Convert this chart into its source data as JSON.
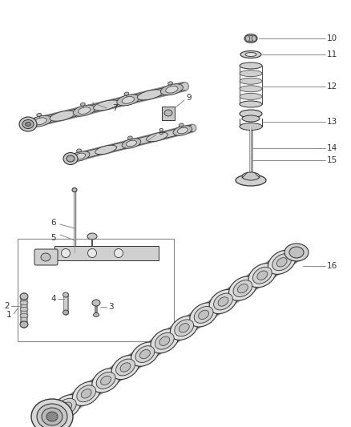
{
  "background_color": "#ffffff",
  "fig_width": 4.38,
  "fig_height": 5.33,
  "dpi": 100,
  "label_fontsize": 7.5,
  "label_color": "#333333",
  "line_color": "#555555",
  "part_fill": "#d8d8d8",
  "part_edge": "#333333",
  "part_fill2": "#e8e8e8",
  "part_edge2": "#555555"
}
